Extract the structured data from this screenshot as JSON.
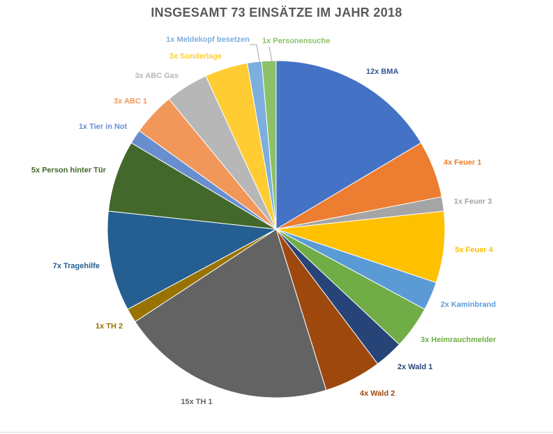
{
  "chart_data": {
    "type": "pie",
    "title": "INSGESAMT 73 EINSÄTZE IM JAHR 2018",
    "total": 73,
    "slices": [
      {
        "label": "12x BMA",
        "value": 12,
        "color": "#4472C4"
      },
      {
        "label": "4x Feuer 1",
        "value": 4,
        "color": "#ED7D31"
      },
      {
        "label": "1x Feuer 3",
        "value": 1,
        "color": "#A5A5A5"
      },
      {
        "label": "5x Feuer 4",
        "value": 5,
        "color": "#FFC000"
      },
      {
        "label": "2x Kaminbrand",
        "value": 2,
        "color": "#5B9BD5"
      },
      {
        "label": "3x Heimrauchmelder",
        "value": 3,
        "color": "#70AD47"
      },
      {
        "label": "2x Wald 1",
        "value": 2,
        "color": "#264478"
      },
      {
        "label": "4x Wald 2",
        "value": 4,
        "color": "#9E480E"
      },
      {
        "label": "15x TH 1",
        "value": 15,
        "color": "#636363"
      },
      {
        "label": "1x TH 2",
        "value": 1,
        "color": "#997300"
      },
      {
        "label": "7x Tragehilfe",
        "value": 7,
        "color": "#255E91"
      },
      {
        "label": "5x Person hinter Tür",
        "value": 5,
        "color": "#43682B"
      },
      {
        "label": "1x Tier in Not",
        "value": 1,
        "color": "#698ED0"
      },
      {
        "label": "3x ABC 1",
        "value": 3,
        "color": "#F1975A"
      },
      {
        "label": "3x ABC Gas",
        "value": 3,
        "color": "#B7B7B7"
      },
      {
        "label": "3x Sonderlage",
        "value": 3,
        "color": "#FFCD33"
      },
      {
        "label": "1x Meldekopf besetzen",
        "value": 1,
        "color": "#7CAFDD"
      },
      {
        "label": "1x Personensuche",
        "value": 1,
        "color": "#8CC168"
      }
    ],
    "legend": "none",
    "data_labels": "outside-end"
  }
}
